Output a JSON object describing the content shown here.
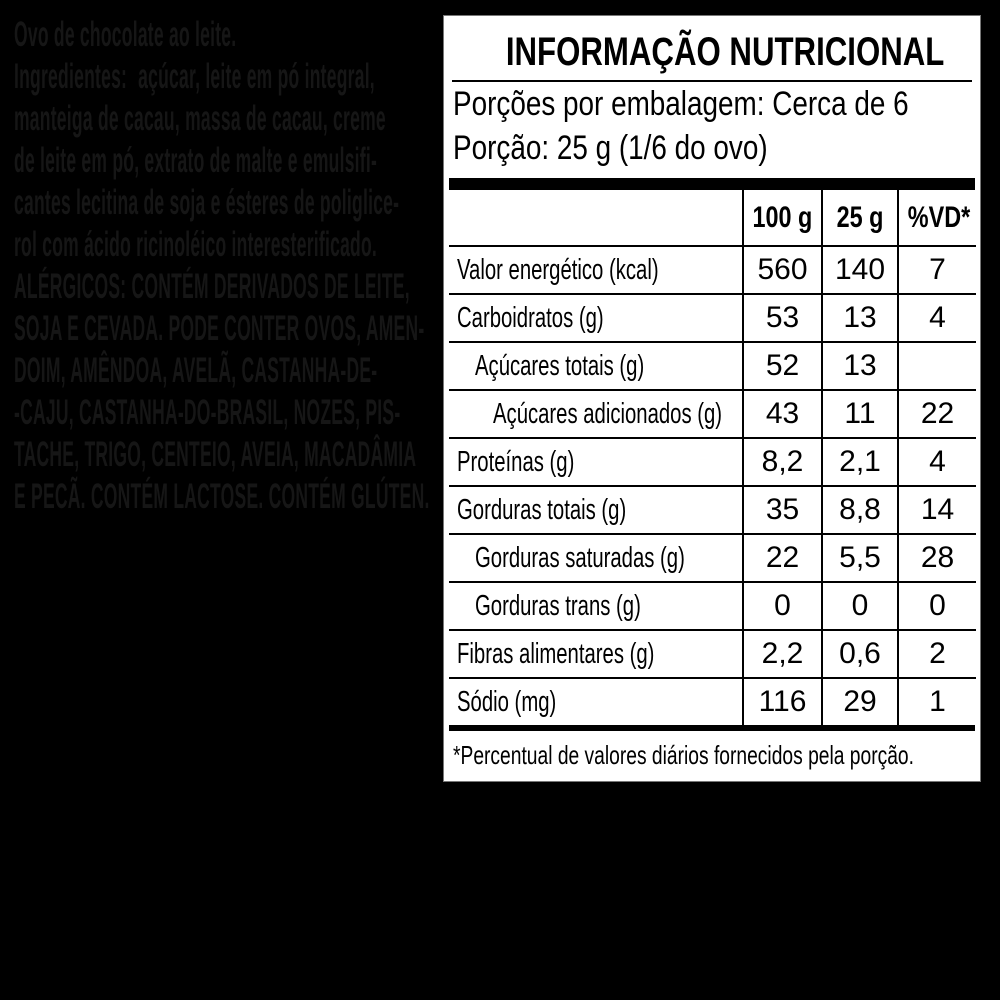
{
  "background_color": "#000000",
  "package_text": {
    "text_color": "#161616",
    "product_line": "Ovo de chocolate ao leite.",
    "ingredients_heading": "Ingredientes:",
    "ingredients_first_line_rest": "açúcar, leite em pó integral,",
    "ingredients_lines": [
      "manteiga de cacau, massa de cacau, creme",
      "de leite em pó, extrato de malte e emulsifi-",
      "cantes lecitina de soja e ésteres de poliglice-",
      "rol com ácido ricinoléico interesterificado."
    ],
    "allergen_lines": [
      "ALÉRGICOS: CONTÉM DERIVADOS DE LEITE,",
      "SOJA E CEVADA. PODE CONTER OVOS, AMEN-",
      "DOIM, AMÊNDOA, AVELÃ, CASTANHA-DE-",
      "-CAJU, CASTANHA-DO-BRASIL, NOZES, PIS-",
      "TACHE, TRIGO, CENTEIO, AVEIA, MACADÂMIA",
      "E PECÃ. CONTÉM LACTOSE. CONTÉM GLÚTEN."
    ]
  },
  "nutrition_label": {
    "panel_color": "#ffffff",
    "text_color": "#000000",
    "title": "INFORMAÇÃO NUTRICIONAL",
    "servings_per_package": "Porções por embalagem: Cerca de 6",
    "serving_size": "Porção: 25 g (1/6 do ovo)",
    "columns": [
      "100 g",
      "25 g",
      "%VD*"
    ],
    "rows": [
      {
        "label": "Valor energético (kcal)",
        "indent": 0,
        "per_100g": "560",
        "per_serving": "140",
        "pct_dv": "7"
      },
      {
        "label": "Carboidratos (g)",
        "indent": 0,
        "per_100g": "53",
        "per_serving": "13",
        "pct_dv": "4"
      },
      {
        "label": "Açúcares totais (g)",
        "indent": 1,
        "per_100g": "52",
        "per_serving": "13",
        "pct_dv": ""
      },
      {
        "label": "Açúcares adicionados (g)",
        "indent": 2,
        "per_100g": "43",
        "per_serving": "11",
        "pct_dv": "22"
      },
      {
        "label": "Proteínas (g)",
        "indent": 0,
        "per_100g": "8,2",
        "per_serving": "2,1",
        "pct_dv": "4"
      },
      {
        "label": "Gorduras totais (g)",
        "indent": 0,
        "per_100g": "35",
        "per_serving": "8,8",
        "pct_dv": "14"
      },
      {
        "label": "Gorduras saturadas (g)",
        "indent": 1,
        "per_100g": "22",
        "per_serving": "5,5",
        "pct_dv": "28"
      },
      {
        "label": "Gorduras trans (g)",
        "indent": 1,
        "per_100g": "0",
        "per_serving": "0",
        "pct_dv": "0"
      },
      {
        "label": "Fibras alimentares (g)",
        "indent": 0,
        "per_100g": "2,2",
        "per_serving": "0,6",
        "pct_dv": "2"
      },
      {
        "label": "Sódio (mg)",
        "indent": 0,
        "per_100g": "116",
        "per_serving": "29",
        "pct_dv": "1"
      }
    ],
    "footnote": "*Percentual de valores diários fornecidos pela porção."
  }
}
